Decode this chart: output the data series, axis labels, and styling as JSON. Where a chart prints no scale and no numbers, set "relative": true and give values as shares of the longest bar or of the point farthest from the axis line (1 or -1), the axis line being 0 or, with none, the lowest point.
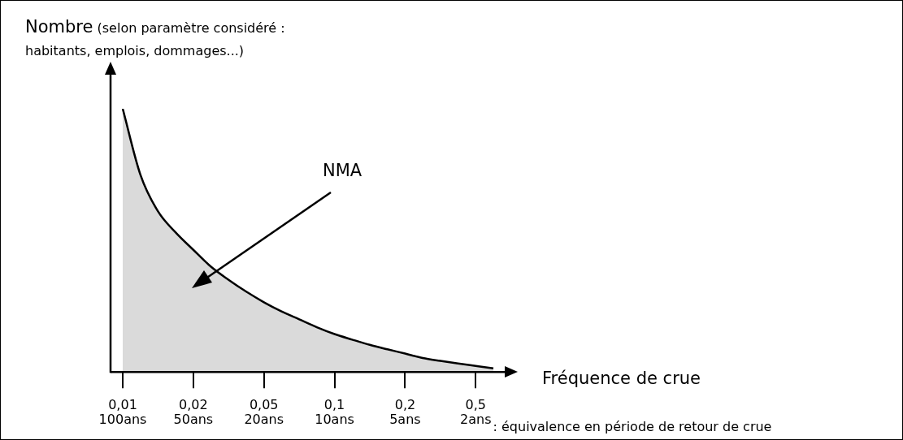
{
  "chart_data": {
    "type": "area",
    "ylabel": "Nombre (selon paramètre considéré :\nhabitants, emplois, dommages...)",
    "xlabel": "Fréquence de crue",
    "categories": [
      "0,01\n100ans",
      null,
      null,
      null,
      "0,02\n50ans",
      null,
      null,
      null,
      "0,05\n20ans",
      null,
      null,
      null,
      "0,1\n10ans",
      null,
      null,
      null,
      "0,2\n5ans",
      null,
      null,
      null,
      "0,5\n2ans",
      null
    ],
    "series": [
      {
        "color": "#000000",
        "values": [
          1,
          0.75,
          0.61,
          0.53,
          0.464,
          0.4,
          0.35,
          0.305,
          0.265,
          0.23,
          0.2,
          0.17,
          0.144,
          0.123,
          0.103,
          0.086,
          0.07,
          0.053,
          0.042,
          0.032,
          0.023,
          0.014
        ]
      }
    ],
    "relative": true,
    "annotations": [
      "NMA",
      ": équivalence en période de retour de crue"
    ]
  }
}
